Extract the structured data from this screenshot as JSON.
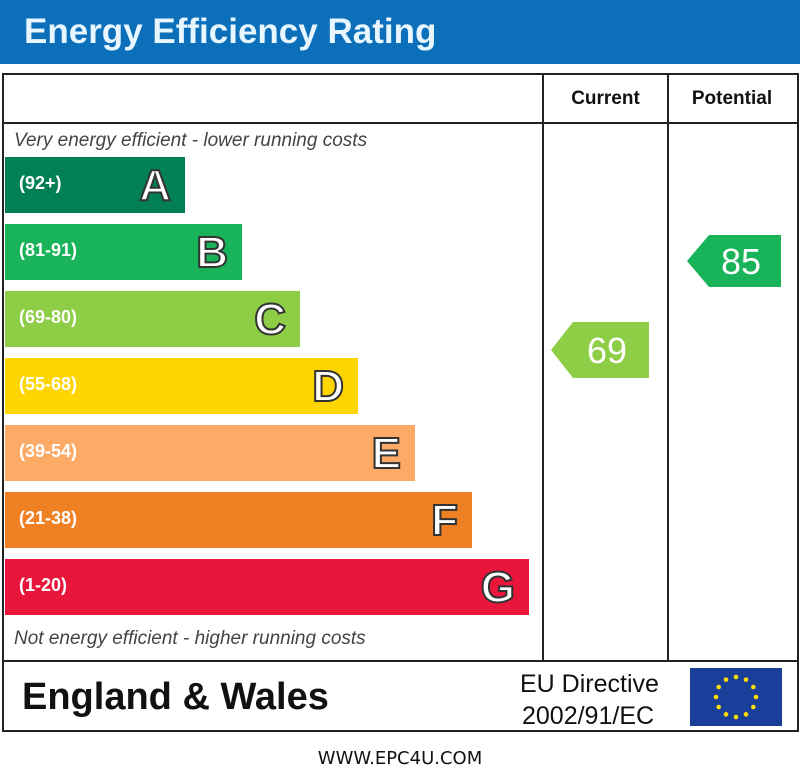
{
  "title": "Energy Efficiency Rating",
  "header": {
    "current": "Current",
    "potential": "Potential"
  },
  "notes": {
    "top": "Very energy efficient - lower running costs",
    "bottom": "Not energy efficient - higher running costs"
  },
  "footer": {
    "region": "England & Wales",
    "directive_line1": "EU Directive",
    "directive_line2": "2002/91/EC",
    "website": "WWW.EPC4U.COM",
    "flag_icon": "eu-flag-icon"
  },
  "chart_data": {
    "type": "bar",
    "title": "Energy Efficiency Rating",
    "categories": [
      "A",
      "B",
      "C",
      "D",
      "E",
      "F",
      "G"
    ],
    "ranges": [
      "(92+)",
      "(81-91)",
      "(69-80)",
      "(55-68)",
      "(39-54)",
      "(21-38)",
      "(1-20)"
    ],
    "colors": [
      "#008054",
      "#19b459",
      "#8dce46",
      "#ffd500",
      "#fcaa65",
      "#ef8023",
      "#e9153b"
    ],
    "current": {
      "label": "Current",
      "value": 69,
      "band": "C",
      "color": "#8dce46"
    },
    "potential": {
      "label": "Potential",
      "value": 85,
      "band": "B",
      "color": "#19b459"
    }
  }
}
